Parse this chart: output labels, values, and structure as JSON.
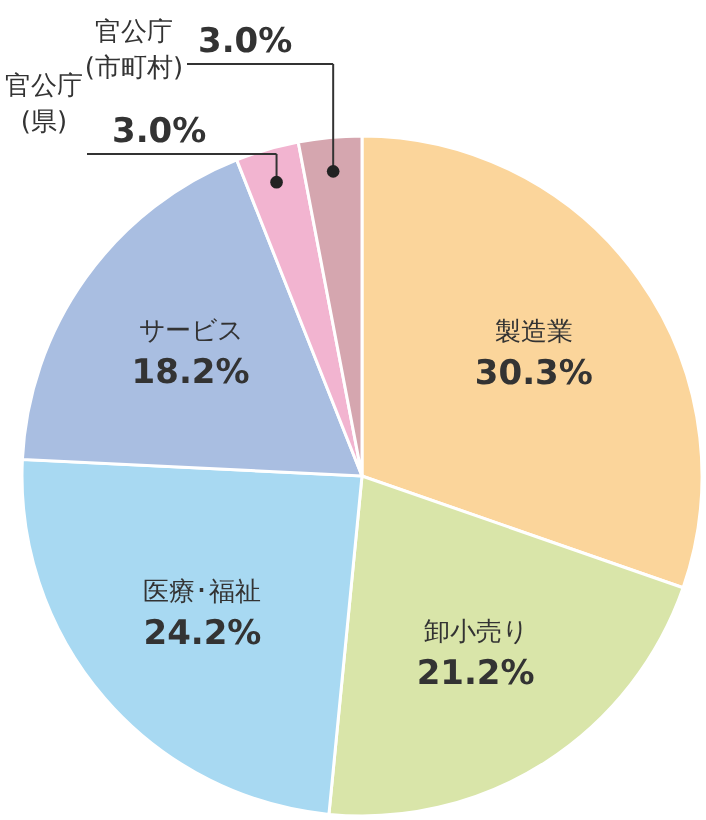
{
  "chart_data": {
    "type": "pie",
    "categories": [
      "製造業",
      "卸小売り",
      "医療･福祉",
      "サービス",
      "官公庁\n(県)",
      "官公庁\n(市町村)"
    ],
    "values": [
      30.3,
      21.2,
      24.2,
      18.2,
      3.0,
      3.0
    ],
    "value_labels": [
      "30.3%",
      "21.2%",
      "24.2%",
      "18.2%",
      "3.0%",
      "3.0%"
    ],
    "colors": [
      "#fbd59b",
      "#d9e5a9",
      "#a8d9f2",
      "#a9bee1",
      "#f2b4d0",
      "#d5a6af"
    ]
  }
}
